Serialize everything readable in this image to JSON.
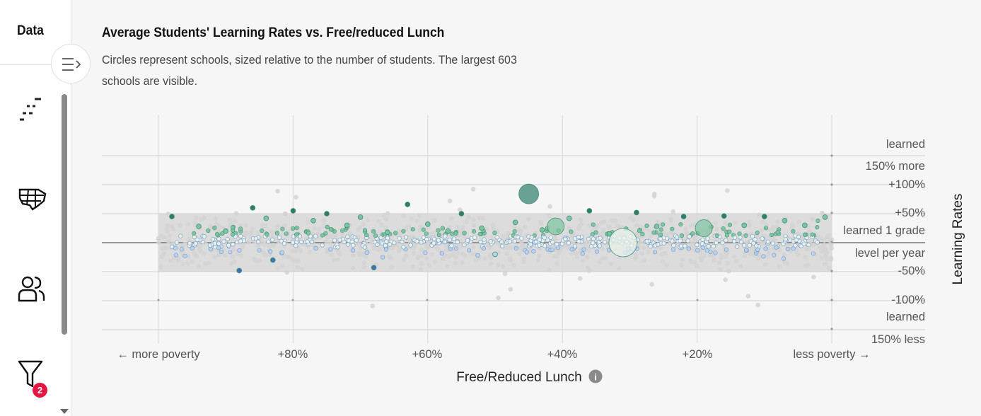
{
  "sidebar": {
    "data_tab_label": "Data",
    "filter_badge_count": "2",
    "icons": [
      "collapse-icon",
      "legend-icon",
      "map-icon",
      "people-icon",
      "filter-icon"
    ]
  },
  "chart_data": {
    "type": "scatter",
    "title": "Average Students' Learning Rates vs. Free/reduced Lunch",
    "subtitle": "Circles represent schools, sized relative to the number of students. The largest 603 schools are visible.",
    "xlabel": "Free/Reduced Lunch",
    "ylabel": "Learning Rates",
    "x_tick_labels": [
      "← more poverty",
      "+80%",
      "+60%",
      "+40%",
      "+20%",
      "less poverty →"
    ],
    "x_ticks": [
      80,
      60,
      40,
      20
    ],
    "x_range": [
      100,
      0
    ],
    "y_tick_labels": [
      "learned 150% more",
      "+100%",
      "+50%",
      "learned 1 grade level per year",
      "-50%",
      "-100%",
      "learned 150% less"
    ],
    "y_ticks": [
      150,
      100,
      50,
      0,
      -50,
      -100,
      -150
    ],
    "y_range": [
      -150,
      150
    ],
    "grid": true,
    "baseline": 0,
    "background_band": [
      -50,
      50
    ],
    "colors": {
      "background_points": "#d3d3d3",
      "strong_positive": "#2e7d6b",
      "positive": "#7cc4a0",
      "near_zero": "#eaf3ea",
      "negative": "#b9d3ef",
      "strong_negative": "#3f74b5"
    },
    "highlighted_schools": [
      {
        "x": 98,
        "y": 45
      },
      {
        "x": 94,
        "y": 28
      },
      {
        "x": 90,
        "y": 20
      },
      {
        "x": 88,
        "y": -48
      },
      {
        "x": 86,
        "y": 60
      },
      {
        "x": 84,
        "y": 42
      },
      {
        "x": 83,
        "y": -30
      },
      {
        "x": 80,
        "y": 55
      },
      {
        "x": 77,
        "y": 38
      },
      {
        "x": 75,
        "y": 50
      },
      {
        "x": 72,
        "y": 30
      },
      {
        "x": 70,
        "y": 44
      },
      {
        "x": 68,
        "y": -43
      },
      {
        "x": 66,
        "y": 18
      },
      {
        "x": 63,
        "y": 66
      },
      {
        "x": 60,
        "y": 32
      },
      {
        "x": 57,
        "y": 20
      },
      {
        "x": 55,
        "y": 50
      },
      {
        "x": 52,
        "y": 25
      },
      {
        "x": 50,
        "y": -20
      },
      {
        "x": 47,
        "y": 35
      },
      {
        "x": 45,
        "y": 84
      },
      {
        "x": 43,
        "y": 22
      },
      {
        "x": 41,
        "y": 28
      },
      {
        "x": 39,
        "y": 42
      },
      {
        "x": 36,
        "y": 55
      },
      {
        "x": 33,
        "y": 15
      },
      {
        "x": 31,
        "y": 0
      },
      {
        "x": 29,
        "y": 52
      },
      {
        "x": 26,
        "y": 28
      },
      {
        "x": 22,
        "y": 45
      },
      {
        "x": 19,
        "y": 25
      },
      {
        "x": 16,
        "y": 46
      },
      {
        "x": 13,
        "y": 30
      },
      {
        "x": 10,
        "y": 45
      },
      {
        "x": 7,
        "y": 38
      },
      {
        "x": 4,
        "y": 30
      },
      {
        "x": 1,
        "y": 44
      }
    ]
  }
}
